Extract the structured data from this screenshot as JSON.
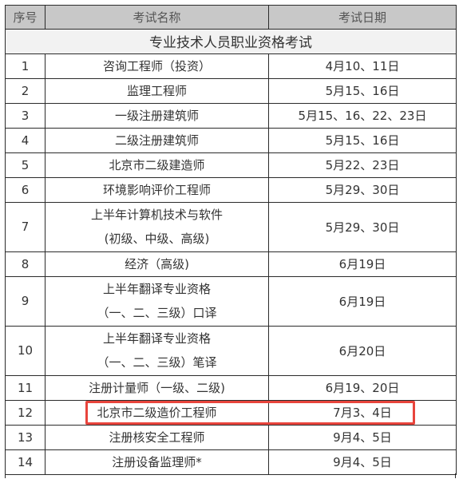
{
  "table": {
    "headers": [
      "序号",
      "考试名称",
      "考试日期"
    ],
    "section_title": "专业技术人员职业资格考试",
    "rows": [
      {
        "no": "1",
        "name": [
          "咨询工程师（投资）"
        ],
        "date": "4月10、11日"
      },
      {
        "no": "2",
        "name": [
          "监理工程师"
        ],
        "date": "5月15、16日"
      },
      {
        "no": "3",
        "name": [
          "一级注册建筑师"
        ],
        "date": "5月15、16、22、23日"
      },
      {
        "no": "4",
        "name": [
          "二级注册建筑师"
        ],
        "date": "5月15、16日"
      },
      {
        "no": "5",
        "name": [
          "北京市二级建造师"
        ],
        "date": "5月22、23日"
      },
      {
        "no": "6",
        "name": [
          "环境影响评价工程师"
        ],
        "date": "5月29、30日"
      },
      {
        "no": "7",
        "name": [
          "上半年计算机技术与软件",
          "(初级、中级、高级)"
        ],
        "date": "5月29、30日"
      },
      {
        "no": "8",
        "name": [
          "经济（高级)"
        ],
        "date": "6月19日"
      },
      {
        "no": "9",
        "name": [
          "上半年翻译专业资格",
          "（一、二、三级）口译"
        ],
        "date": "6月19日"
      },
      {
        "no": "10",
        "name": [
          "上半年翻译专业资格",
          "（一、二、三级）笔译"
        ],
        "date": "6月20日"
      },
      {
        "no": "11",
        "name": [
          "注册计量师（一级、二级)"
        ],
        "date": "6月19、20日"
      },
      {
        "no": "12",
        "name": [
          "北京市二级造价工程师"
        ],
        "date": "7月3、4日",
        "highlighted": true
      },
      {
        "no": "13",
        "name": [
          "注册核安全工程师"
        ],
        "date": "9月4、5日"
      },
      {
        "no": "14",
        "name": [
          "注册设备监理师*"
        ],
        "date": "9月4、5日"
      }
    ]
  },
  "colors": {
    "header_bg": "#c8c8c8",
    "section_bg": "#f2f2f2",
    "highlight": "#e8443c",
    "border": "#2b2b2b"
  }
}
